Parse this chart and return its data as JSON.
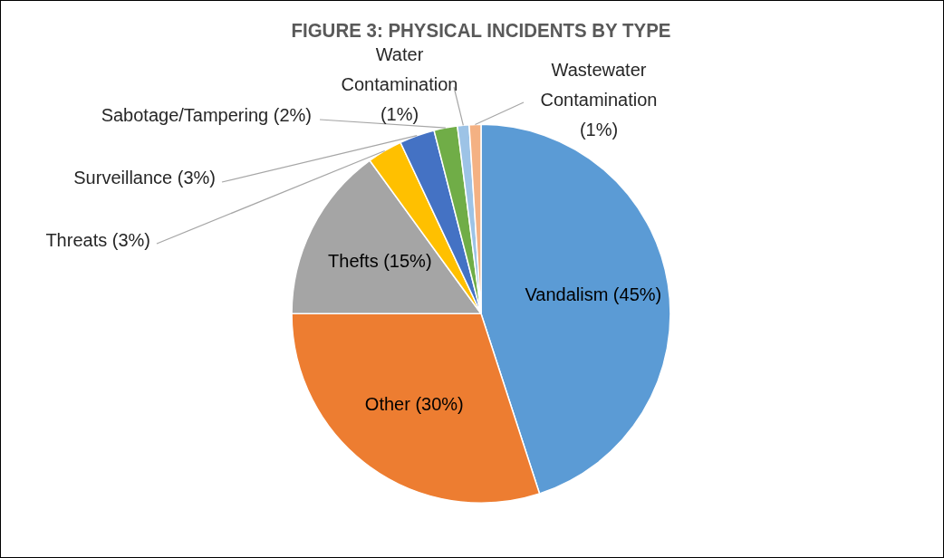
{
  "chart_data": {
    "type": "pie",
    "title": "FIGURE 3: PHYSICAL INCIDENTS BY TYPE",
    "categories": [
      "Vandalism",
      "Other",
      "Thefts",
      "Threats",
      "Surveillance",
      "Sabotage/Tampering",
      "Water Contamination",
      "Wastewater Contamination"
    ],
    "values": [
      45,
      30,
      15,
      3,
      3,
      2,
      1,
      1
    ],
    "value_labels": [
      "(45%)",
      "(30%)",
      "(15%)",
      "(3%)",
      "(3%)",
      "(2%)",
      "(1%)",
      "(1%)"
    ],
    "colors": [
      "#5b9bd5",
      "#ed7d31",
      "#a5a5a5",
      "#ffc000",
      "#4472c4",
      "#70ad47",
      "#9dc3e6",
      "#f4b183"
    ],
    "legend": false
  }
}
